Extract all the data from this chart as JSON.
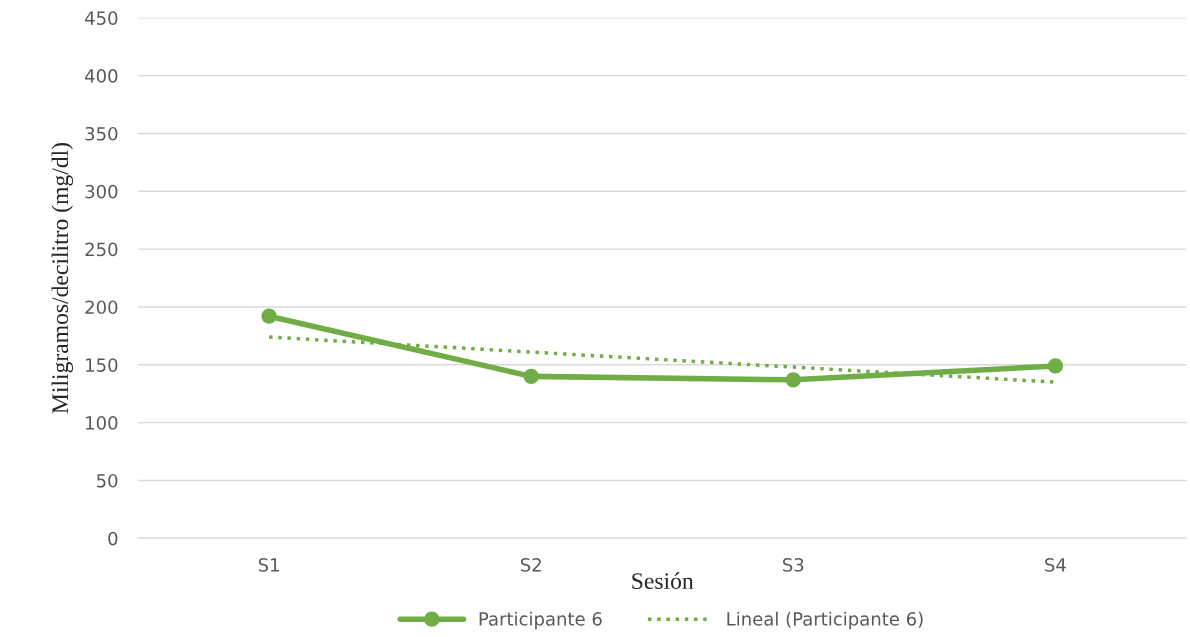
{
  "chart_data": {
    "type": "line",
    "xlabel": "Sesión",
    "ylabel": "Miligramos/decilitro (mg/dl)",
    "categories": [
      "S1",
      "S2",
      "S3",
      "S4"
    ],
    "series": [
      {
        "name": "Participante 6",
        "color": "#70ad47",
        "values": [
          192,
          140,
          137,
          149
        ],
        "marker": "circle",
        "line_style": "solid"
      },
      {
        "name": "Lineal (Participante 6)",
        "color": "#70ad47",
        "values": [
          174,
          161,
          148,
          135
        ],
        "marker": "none",
        "line_style": "dotted"
      }
    ],
    "ylim": [
      0,
      450
    ],
    "yticks": [
      0,
      50,
      100,
      150,
      200,
      250,
      300,
      350,
      400,
      450
    ],
    "grid": "y",
    "legend": "bottom"
  }
}
